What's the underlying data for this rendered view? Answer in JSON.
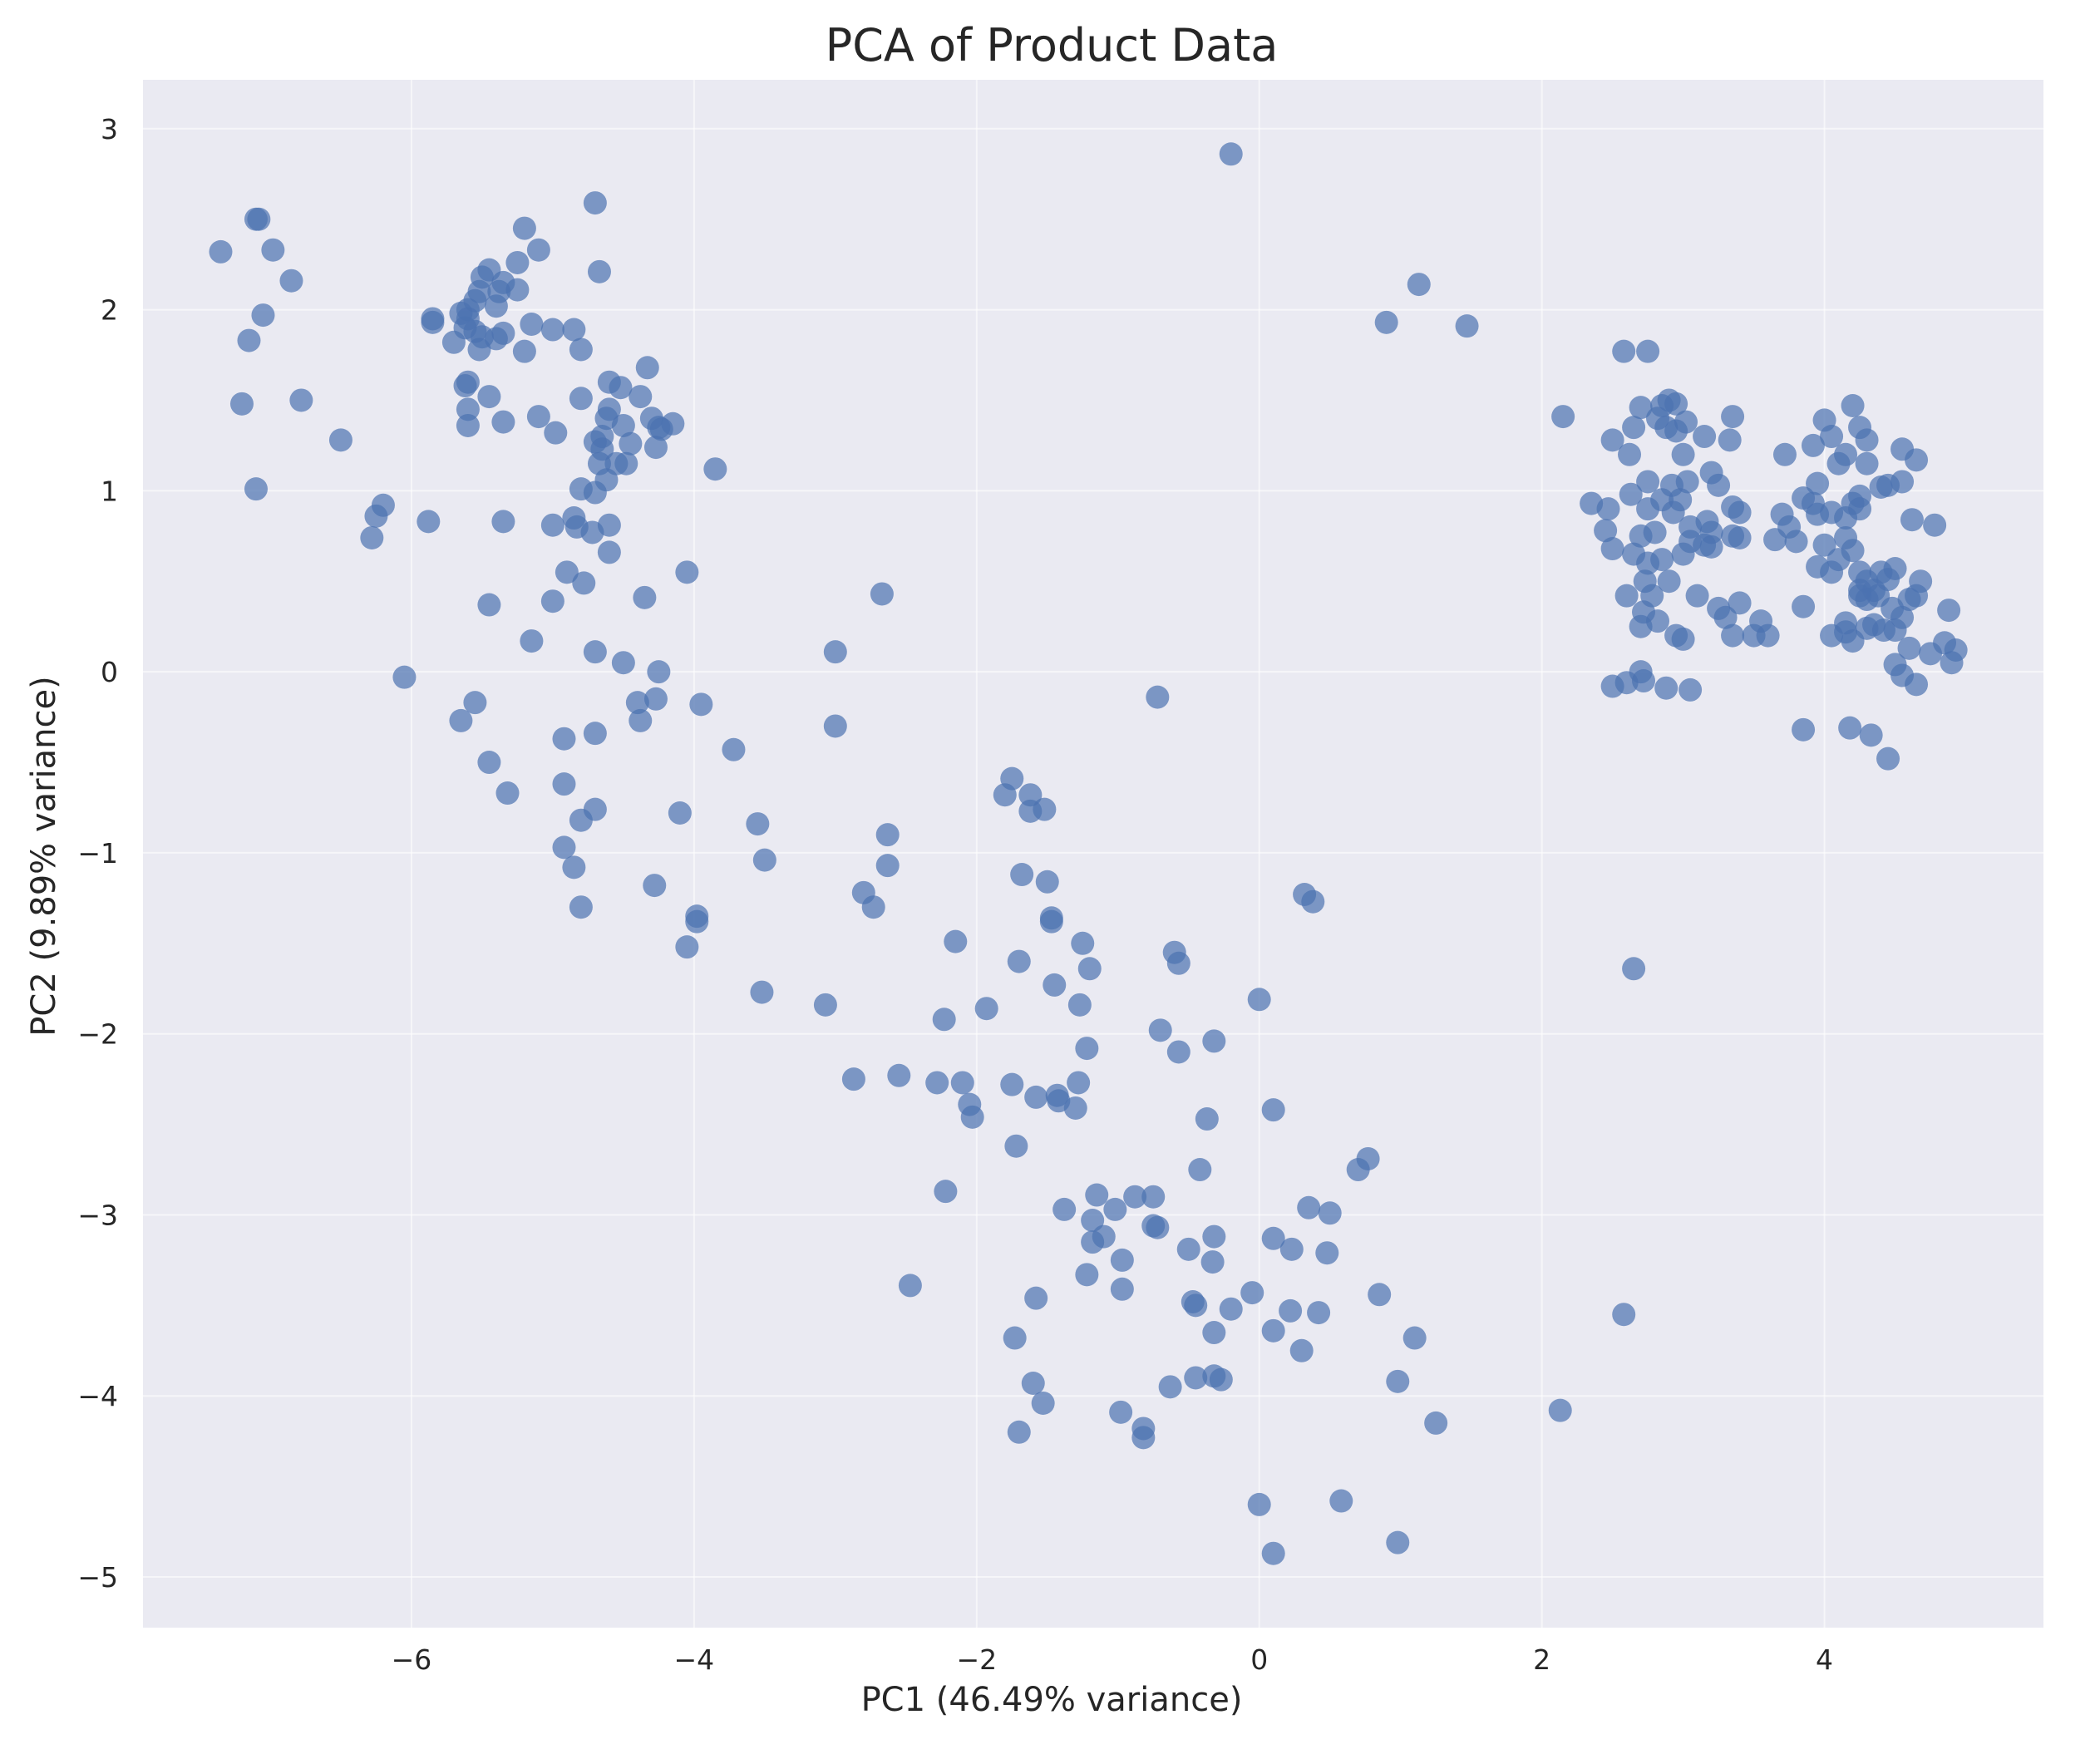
{
  "chart_data": {
    "type": "scatter",
    "title": "PCA of Product Data",
    "xlabel": "PC1 (46.49% variance)",
    "ylabel": "PC2 (9.89% variance)",
    "xlim": [
      -7.9,
      5.55
    ],
    "ylim": [
      -5.28,
      3.27
    ],
    "xticks": [
      -6,
      -4,
      -2,
      0,
      2,
      4
    ],
    "yticks": [
      -5,
      -4,
      -3,
      -2,
      -1,
      0,
      1,
      2,
      3
    ],
    "xtick_labels": [
      "−6",
      "−4",
      "−2",
      "0",
      "2",
      "4"
    ],
    "ytick_labels": [
      "−5",
      "−4",
      "−3",
      "−2",
      "−1",
      "0",
      "1",
      "2",
      "3"
    ],
    "grid": true,
    "point_color": "#4c72b0",
    "background_color": "#eaeaf2",
    "points": [
      [
        -7.35,
        2.32
      ],
      [
        -7.1,
        2.5
      ],
      [
        -7.08,
        2.5
      ],
      [
        -6.98,
        2.33
      ],
      [
        -6.85,
        2.16
      ],
      [
        -7.05,
        1.97
      ],
      [
        -7.15,
        1.83
      ],
      [
        -7.2,
        1.48
      ],
      [
        -6.78,
        1.5
      ],
      [
        -7.1,
        1.01
      ],
      [
        -6.5,
        1.28
      ],
      [
        -6.2,
        0.92
      ],
      [
        -6.25,
        0.86
      ],
      [
        -6.28,
        0.74
      ],
      [
        -5.88,
        0.83
      ],
      [
        -6.05,
        -0.03
      ],
      [
        -5.6,
        1.95
      ],
      [
        -5.45,
        2.22
      ],
      [
        -5.5,
        2.18
      ],
      [
        -5.52,
        2.1
      ],
      [
        -5.55,
        2.05
      ],
      [
        -5.6,
        2.0
      ],
      [
        -5.65,
        1.98
      ],
      [
        -5.62,
        1.9
      ],
      [
        -5.55,
        1.88
      ],
      [
        -5.5,
        1.85
      ],
      [
        -5.52,
        1.78
      ],
      [
        -5.4,
        2.02
      ],
      [
        -5.38,
        2.1
      ],
      [
        -5.35,
        2.15
      ],
      [
        -5.25,
        2.26
      ],
      [
        -5.2,
        2.45
      ],
      [
        -5.1,
        2.33
      ],
      [
        -5.25,
        2.11
      ],
      [
        -5.35,
        1.87
      ],
      [
        -5.4,
        1.84
      ],
      [
        -5.7,
        1.82
      ],
      [
        -5.85,
        1.93
      ],
      [
        -5.85,
        1.95
      ],
      [
        -5.6,
        1.6
      ],
      [
        -5.62,
        1.58
      ],
      [
        -5.6,
        1.45
      ],
      [
        -5.6,
        1.36
      ],
      [
        -5.45,
        1.52
      ],
      [
        -5.35,
        1.38
      ],
      [
        -5.2,
        1.77
      ],
      [
        -5.15,
        1.92
      ],
      [
        -5.0,
        1.89
      ],
      [
        -4.85,
        1.89
      ],
      [
        -4.8,
        1.78
      ],
      [
        -4.8,
        1.51
      ],
      [
        -4.7,
        2.59
      ],
      [
        -4.67,
        2.21
      ],
      [
        -5.1,
        1.41
      ],
      [
        -4.98,
        1.32
      ],
      [
        -4.7,
        1.27
      ],
      [
        -4.65,
        1.3
      ],
      [
        -4.62,
        1.4
      ],
      [
        -4.6,
        1.45
      ],
      [
        -4.6,
        1.6
      ],
      [
        -4.52,
        1.57
      ],
      [
        -4.38,
        1.52
      ],
      [
        -4.33,
        1.68
      ],
      [
        -4.3,
        1.4
      ],
      [
        -4.25,
        1.35
      ],
      [
        -4.23,
        1.34
      ],
      [
        -4.15,
        1.37
      ],
      [
        -4.27,
        1.24
      ],
      [
        -4.45,
        1.26
      ],
      [
        -4.48,
        1.15
      ],
      [
        -4.55,
        1.15
      ],
      [
        -4.5,
        1.36
      ],
      [
        -4.65,
        1.23
      ],
      [
        -4.67,
        1.15
      ],
      [
        -4.62,
        1.06
      ],
      [
        -4.7,
        0.99
      ],
      [
        -4.8,
        1.01
      ],
      [
        -3.85,
        1.12
      ],
      [
        -4.6,
        0.81
      ],
      [
        -4.72,
        0.77
      ],
      [
        -4.83,
        0.8
      ],
      [
        -4.85,
        0.85
      ],
      [
        -5.0,
        0.81
      ],
      [
        -5.35,
        0.83
      ],
      [
        -4.6,
        0.66
      ],
      [
        -4.9,
        0.55
      ],
      [
        -4.78,
        0.49
      ],
      [
        -5.0,
        0.39
      ],
      [
        -4.35,
        0.41
      ],
      [
        -4.05,
        0.55
      ],
      [
        -5.45,
        0.37
      ],
      [
        -5.15,
        0.17
      ],
      [
        -4.7,
        0.11
      ],
      [
        -4.5,
        0.05
      ],
      [
        -4.25,
        0.0
      ],
      [
        -4.4,
        -0.17
      ],
      [
        -4.27,
        -0.15
      ],
      [
        -4.38,
        -0.27
      ],
      [
        -3.95,
        -0.18
      ],
      [
        -4.7,
        -0.34
      ],
      [
        -4.92,
        -0.37
      ],
      [
        -5.55,
        -0.17
      ],
      [
        -5.65,
        -0.27
      ],
      [
        -5.45,
        -0.5
      ],
      [
        -5.32,
        -0.67
      ],
      [
        -4.92,
        -0.62
      ],
      [
        -4.8,
        -0.82
      ],
      [
        -4.7,
        -0.76
      ],
      [
        -4.92,
        -0.97
      ],
      [
        -4.85,
        -1.08
      ],
      [
        -4.8,
        -1.3
      ],
      [
        -4.28,
        -1.18
      ],
      [
        -4.1,
        -0.78
      ],
      [
        -3.98,
        -1.35
      ],
      [
        -3.98,
        -1.38
      ],
      [
        -4.05,
        -1.52
      ],
      [
        -3.72,
        -0.43
      ],
      [
        -3.55,
        -0.84
      ],
      [
        -3.5,
        -1.04
      ],
      [
        -3.52,
        -1.77
      ],
      [
        -3.07,
        -1.84
      ],
      [
        -3.0,
        0.11
      ],
      [
        -3.0,
        -0.3
      ],
      [
        -2.67,
        0.43
      ],
      [
        -2.63,
        -0.9
      ],
      [
        -2.63,
        -1.07
      ],
      [
        -2.8,
        -1.22
      ],
      [
        -2.73,
        -1.3
      ],
      [
        -2.87,
        -2.25
      ],
      [
        -2.55,
        -2.23
      ],
      [
        -2.47,
        -3.39
      ],
      [
        -2.28,
        -2.27
      ],
      [
        -2.23,
        -1.92
      ],
      [
        -2.22,
        -2.87
      ],
      [
        -2.15,
        -1.49
      ],
      [
        -2.1,
        -2.27
      ],
      [
        -2.05,
        -2.39
      ],
      [
        -2.03,
        -2.46
      ],
      [
        -1.93,
        -1.86
      ],
      [
        -1.8,
        -0.68
      ],
      [
        -1.75,
        -0.59
      ],
      [
        -1.62,
        -0.68
      ],
      [
        -1.62,
        -0.77
      ],
      [
        -1.52,
        -0.76
      ],
      [
        -1.68,
        -1.12
      ],
      [
        -1.7,
        -1.6
      ],
      [
        -1.5,
        -1.16
      ],
      [
        -1.47,
        -1.36
      ],
      [
        -1.47,
        -1.38
      ],
      [
        -1.45,
        -1.73
      ],
      [
        -1.72,
        -2.62
      ],
      [
        -1.75,
        -2.28
      ],
      [
        -1.58,
        -2.35
      ],
      [
        -1.43,
        -2.34
      ],
      [
        -1.42,
        -2.37
      ],
      [
        -1.3,
        -2.41
      ],
      [
        -1.27,
        -1.84
      ],
      [
        -1.25,
        -1.5
      ],
      [
        -1.2,
        -1.64
      ],
      [
        -1.22,
        -2.08
      ],
      [
        -1.28,
        -2.27
      ],
      [
        -1.38,
        -2.97
      ],
      [
        -1.15,
        -2.89
      ],
      [
        -1.18,
        -3.03
      ],
      [
        -1.18,
        -3.15
      ],
      [
        -1.1,
        -3.12
      ],
      [
        -1.02,
        -2.97
      ],
      [
        -0.88,
        -2.9
      ],
      [
        -0.75,
        -2.9
      ],
      [
        -0.75,
        -3.06
      ],
      [
        -0.72,
        -3.07
      ],
      [
        -1.22,
        -3.33
      ],
      [
        -0.97,
        -3.25
      ],
      [
        -0.97,
        -3.41
      ],
      [
        -1.58,
        -3.46
      ],
      [
        -1.73,
        -3.68
      ],
      [
        -1.6,
        -3.93
      ],
      [
        -1.53,
        -4.04
      ],
      [
        -1.7,
        -4.2
      ],
      [
        -0.98,
        -4.09
      ],
      [
        -0.82,
        -4.18
      ],
      [
        -0.82,
        -4.23
      ],
      [
        -0.72,
        -0.14
      ],
      [
        -0.7,
        -1.98
      ],
      [
        -0.6,
        -1.55
      ],
      [
        -0.57,
        -1.61
      ],
      [
        -0.57,
        -2.1
      ],
      [
        -0.32,
        -2.04
      ],
      [
        -0.37,
        -2.47
      ],
      [
        -0.42,
        -2.75
      ],
      [
        -0.5,
        -3.19
      ],
      [
        -0.32,
        -3.12
      ],
      [
        -0.33,
        -3.26
      ],
      [
        -0.47,
        -3.48
      ],
      [
        -0.45,
        -3.5
      ],
      [
        -0.2,
        -3.52
      ],
      [
        -0.32,
        -3.65
      ],
      [
        -0.45,
        -3.9
      ],
      [
        -0.32,
        -3.89
      ],
      [
        -0.27,
        -3.91
      ],
      [
        -0.63,
        -3.95
      ],
      [
        -0.2,
        2.86
      ],
      [
        0.0,
        -1.81
      ],
      [
        0.1,
        -2.42
      ],
      [
        0.1,
        -3.13
      ],
      [
        0.23,
        -3.19
      ],
      [
        -0.05,
        -3.43
      ],
      [
        0.22,
        -3.53
      ],
      [
        0.42,
        -3.54
      ],
      [
        0.1,
        -3.64
      ],
      [
        0.3,
        -3.75
      ],
      [
        0.48,
        -3.21
      ],
      [
        0.5,
        -2.99
      ],
      [
        0.35,
        -2.96
      ],
      [
        0.7,
        -2.75
      ],
      [
        0.77,
        -2.69
      ],
      [
        0.32,
        -1.23
      ],
      [
        0.38,
        -1.27
      ],
      [
        0.85,
        -3.44
      ],
      [
        0.98,
        -3.92
      ],
      [
        1.1,
        -3.68
      ],
      [
        1.25,
        -4.15
      ],
      [
        0.0,
        -4.6
      ],
      [
        0.1,
        -4.87
      ],
      [
        0.58,
        -4.58
      ],
      [
        0.98,
        -4.81
      ],
      [
        0.9,
        1.93
      ],
      [
        1.13,
        2.14
      ],
      [
        1.47,
        1.91
      ],
      [
        2.13,
        -4.08
      ],
      [
        2.58,
        -3.55
      ],
      [
        2.65,
        -1.64
      ],
      [
        2.15,
        1.41
      ],
      [
        2.35,
        0.93
      ],
      [
        2.47,
        0.9
      ],
      [
        2.5,
        0.68
      ],
      [
        2.45,
        0.78
      ],
      [
        2.5,
        -0.08
      ],
      [
        2.6,
        -0.06
      ],
      [
        2.7,
        0.0
      ],
      [
        2.72,
        -0.05
      ],
      [
        2.58,
        1.77
      ],
      [
        2.75,
        1.77
      ],
      [
        2.5,
        1.28
      ],
      [
        2.62,
        1.2
      ],
      [
        2.65,
        1.35
      ],
      [
        2.7,
        1.46
      ],
      [
        2.85,
        1.47
      ],
      [
        2.9,
        1.5
      ],
      [
        2.95,
        1.48
      ],
      [
        2.82,
        1.4
      ],
      [
        2.88,
        1.35
      ],
      [
        2.95,
        1.33
      ],
      [
        3.02,
        1.38
      ],
      [
        3.15,
        1.3
      ],
      [
        3.35,
        1.41
      ],
      [
        3.33,
        1.28
      ],
      [
        3.2,
        1.1
      ],
      [
        3.25,
        1.03
      ],
      [
        3.0,
        1.2
      ],
      [
        2.85,
        0.95
      ],
      [
        2.75,
        0.9
      ],
      [
        2.63,
        0.98
      ],
      [
        2.75,
        1.05
      ],
      [
        2.92,
        1.03
      ],
      [
        3.03,
        1.05
      ],
      [
        2.93,
        0.88
      ],
      [
        2.98,
        0.95
      ],
      [
        3.05,
        0.8
      ],
      [
        3.17,
        0.83
      ],
      [
        3.2,
        0.77
      ],
      [
        3.35,
        0.91
      ],
      [
        3.4,
        0.88
      ],
      [
        3.35,
        0.75
      ],
      [
        3.4,
        0.74
      ],
      [
        3.2,
        0.69
      ],
      [
        3.15,
        0.7
      ],
      [
        3.05,
        0.72
      ],
      [
        2.8,
        0.77
      ],
      [
        2.7,
        0.75
      ],
      [
        2.65,
        0.65
      ],
      [
        2.75,
        0.6
      ],
      [
        2.85,
        0.62
      ],
      [
        2.73,
        0.5
      ],
      [
        2.78,
        0.42
      ],
      [
        2.72,
        0.33
      ],
      [
        2.7,
        0.25
      ],
      [
        2.82,
        0.28
      ],
      [
        2.95,
        0.2
      ],
      [
        3.0,
        0.18
      ],
      [
        2.9,
        0.5
      ],
      [
        3.0,
        0.65
      ],
      [
        3.1,
        0.42
      ],
      [
        3.3,
        0.3
      ],
      [
        3.25,
        0.35
      ],
      [
        3.4,
        0.38
      ],
      [
        3.35,
        0.2
      ],
      [
        3.5,
        0.2
      ],
      [
        3.6,
        0.2
      ],
      [
        3.55,
        0.28
      ],
      [
        3.85,
        0.36
      ],
      [
        3.65,
        0.73
      ],
      [
        3.75,
        0.8
      ],
      [
        3.8,
        0.72
      ],
      [
        3.7,
        0.87
      ],
      [
        3.72,
        1.2
      ],
      [
        3.85,
        0.96
      ],
      [
        3.92,
        1.25
      ],
      [
        3.95,
        1.04
      ],
      [
        4.0,
        1.39
      ],
      [
        4.05,
        1.3
      ],
      [
        4.1,
        1.15
      ],
      [
        4.15,
        1.2
      ],
      [
        4.2,
        1.47
      ],
      [
        4.25,
        1.35
      ],
      [
        4.3,
        1.28
      ],
      [
        4.3,
        1.15
      ],
      [
        4.4,
        1.02
      ],
      [
        4.45,
        1.03
      ],
      [
        4.55,
        1.05
      ],
      [
        4.55,
        1.23
      ],
      [
        4.65,
        1.17
      ],
      [
        4.62,
        0.84
      ],
      [
        4.78,
        0.81
      ],
      [
        4.25,
        0.97
      ],
      [
        4.2,
        0.93
      ],
      [
        4.25,
        0.9
      ],
      [
        4.15,
        0.85
      ],
      [
        4.05,
        0.88
      ],
      [
        3.95,
        0.87
      ],
      [
        3.92,
        0.93
      ],
      [
        4.0,
        0.7
      ],
      [
        3.95,
        0.58
      ],
      [
        4.05,
        0.55
      ],
      [
        4.1,
        0.62
      ],
      [
        4.2,
        0.67
      ],
      [
        4.15,
        0.74
      ],
      [
        4.25,
        0.55
      ],
      [
        4.3,
        0.5
      ],
      [
        4.35,
        0.45
      ],
      [
        4.4,
        0.55
      ],
      [
        4.5,
        0.57
      ],
      [
        4.45,
        0.51
      ],
      [
        4.38,
        0.42
      ],
      [
        4.3,
        0.4
      ],
      [
        4.25,
        0.45
      ],
      [
        4.25,
        0.42
      ],
      [
        4.15,
        0.27
      ],
      [
        4.2,
        0.17
      ],
      [
        4.3,
        0.24
      ],
      [
        4.35,
        0.26
      ],
      [
        4.42,
        0.23
      ],
      [
        4.48,
        0.35
      ],
      [
        4.55,
        0.3
      ],
      [
        4.5,
        0.23
      ],
      [
        4.6,
        0.13
      ],
      [
        4.6,
        0.4
      ],
      [
        4.65,
        0.42
      ],
      [
        4.68,
        0.5
      ],
      [
        4.75,
        0.1
      ],
      [
        4.85,
        0.16
      ],
      [
        4.88,
        0.34
      ],
      [
        4.93,
        0.12
      ],
      [
        4.9,
        0.05
      ],
      [
        4.5,
        0.04
      ],
      [
        4.55,
        -0.02
      ],
      [
        4.65,
        -0.07
      ],
      [
        4.33,
        -0.35
      ],
      [
        4.45,
        -0.48
      ],
      [
        4.18,
        -0.31
      ],
      [
        3.85,
        -0.32
      ],
      [
        4.05,
        0.2
      ],
      [
        4.15,
        0.22
      ],
      [
        2.88,
        -0.09
      ],
      [
        3.05,
        -0.1
      ],
      [
        2.6,
        0.42
      ]
    ]
  }
}
